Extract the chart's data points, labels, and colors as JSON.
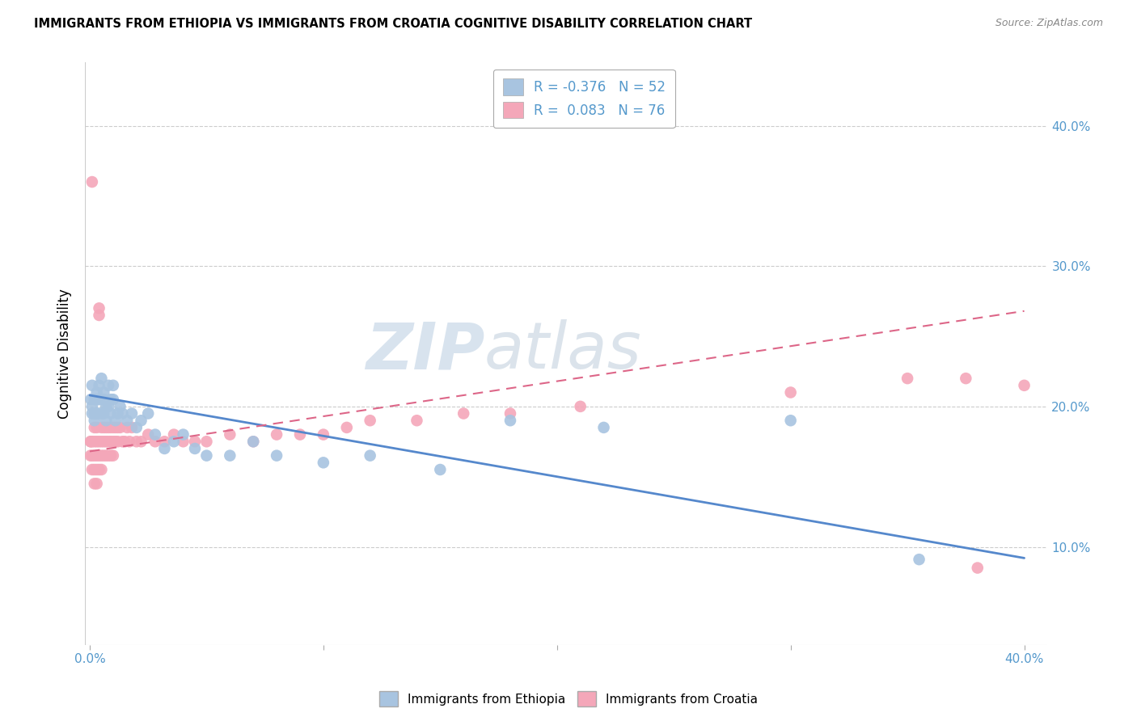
{
  "title": "IMMIGRANTS FROM ETHIOPIA VS IMMIGRANTS FROM CROATIA COGNITIVE DISABILITY CORRELATION CHART",
  "source": "Source: ZipAtlas.com",
  "ylabel": "Cognitive Disability",
  "x_ticklabels": [
    "0.0%",
    "",
    "",
    "",
    "40.0%"
  ],
  "x_ticks": [
    0.0,
    0.1,
    0.2,
    0.3,
    0.4
  ],
  "y_ticklabels_right": [
    "10.0%",
    "20.0%",
    "30.0%",
    "40.0%"
  ],
  "y_ticks_right": [
    0.1,
    0.2,
    0.3,
    0.4
  ],
  "xlim": [
    -0.002,
    0.41
  ],
  "ylim": [
    0.03,
    0.445
  ],
  "legend_ethiopia": "R = -0.376   N = 52",
  "legend_croatia": "R =  0.083   N = 76",
  "color_ethiopia": "#a8c4e0",
  "color_croatia": "#f4a7b9",
  "trendline_ethiopia_color": "#5588cc",
  "trendline_croatia_color": "#dd6688",
  "watermark_zip": "ZIP",
  "watermark_atlas": "atlas",
  "background_color": "#ffffff",
  "grid_color": "#cccccc",
  "title_fontsize": 10.5,
  "axis_label_color": "#5599cc",
  "tick_color": "#5599cc",
  "ethiopia_x": [
    0.0005,
    0.001,
    0.001,
    0.001,
    0.002,
    0.002,
    0.002,
    0.003,
    0.003,
    0.003,
    0.004,
    0.004,
    0.004,
    0.005,
    0.005,
    0.005,
    0.006,
    0.006,
    0.006,
    0.007,
    0.007,
    0.008,
    0.008,
    0.009,
    0.009,
    0.01,
    0.01,
    0.011,
    0.012,
    0.013,
    0.014,
    0.016,
    0.018,
    0.02,
    0.022,
    0.025,
    0.028,
    0.032,
    0.036,
    0.04,
    0.045,
    0.05,
    0.06,
    0.07,
    0.08,
    0.1,
    0.12,
    0.15,
    0.18,
    0.22,
    0.3,
    0.355
  ],
  "ethiopia_y": [
    0.205,
    0.215,
    0.2,
    0.195,
    0.205,
    0.195,
    0.19,
    0.21,
    0.205,
    0.195,
    0.215,
    0.205,
    0.195,
    0.22,
    0.205,
    0.195,
    0.21,
    0.205,
    0.195,
    0.2,
    0.19,
    0.215,
    0.2,
    0.205,
    0.195,
    0.215,
    0.205,
    0.19,
    0.195,
    0.2,
    0.195,
    0.19,
    0.195,
    0.185,
    0.19,
    0.195,
    0.18,
    0.17,
    0.175,
    0.18,
    0.17,
    0.165,
    0.165,
    0.175,
    0.165,
    0.16,
    0.165,
    0.155,
    0.19,
    0.185,
    0.19,
    0.091
  ],
  "croatia_x": [
    0.0003,
    0.0003,
    0.0005,
    0.001,
    0.001,
    0.001,
    0.001,
    0.002,
    0.002,
    0.002,
    0.002,
    0.002,
    0.003,
    0.003,
    0.003,
    0.003,
    0.003,
    0.004,
    0.004,
    0.004,
    0.004,
    0.004,
    0.005,
    0.005,
    0.005,
    0.005,
    0.006,
    0.006,
    0.006,
    0.007,
    0.007,
    0.007,
    0.008,
    0.008,
    0.008,
    0.009,
    0.009,
    0.009,
    0.01,
    0.01,
    0.01,
    0.011,
    0.011,
    0.012,
    0.012,
    0.013,
    0.014,
    0.015,
    0.016,
    0.017,
    0.018,
    0.02,
    0.022,
    0.025,
    0.028,
    0.032,
    0.036,
    0.04,
    0.045,
    0.05,
    0.06,
    0.07,
    0.08,
    0.09,
    0.1,
    0.11,
    0.12,
    0.14,
    0.16,
    0.18,
    0.21,
    0.3,
    0.35,
    0.375,
    0.38,
    0.4
  ],
  "croatia_y": [
    0.175,
    0.165,
    0.175,
    0.36,
    0.175,
    0.165,
    0.155,
    0.185,
    0.175,
    0.165,
    0.155,
    0.145,
    0.185,
    0.175,
    0.165,
    0.155,
    0.145,
    0.27,
    0.265,
    0.175,
    0.165,
    0.155,
    0.185,
    0.175,
    0.165,
    0.155,
    0.185,
    0.175,
    0.165,
    0.185,
    0.175,
    0.165,
    0.185,
    0.175,
    0.165,
    0.185,
    0.175,
    0.165,
    0.185,
    0.175,
    0.165,
    0.185,
    0.175,
    0.185,
    0.175,
    0.185,
    0.175,
    0.175,
    0.185,
    0.175,
    0.185,
    0.175,
    0.175,
    0.18,
    0.175,
    0.175,
    0.18,
    0.175,
    0.175,
    0.175,
    0.18,
    0.175,
    0.18,
    0.18,
    0.18,
    0.185,
    0.19,
    0.19,
    0.195,
    0.195,
    0.2,
    0.21,
    0.22,
    0.22,
    0.085,
    0.215
  ],
  "eth_trend_x0": 0.0,
  "eth_trend_y0": 0.208,
  "eth_trend_x1": 0.4,
  "eth_trend_y1": 0.092,
  "cro_trend_x0": 0.0,
  "cro_trend_y0": 0.168,
  "cro_trend_x1": 0.4,
  "cro_trend_y1": 0.268
}
